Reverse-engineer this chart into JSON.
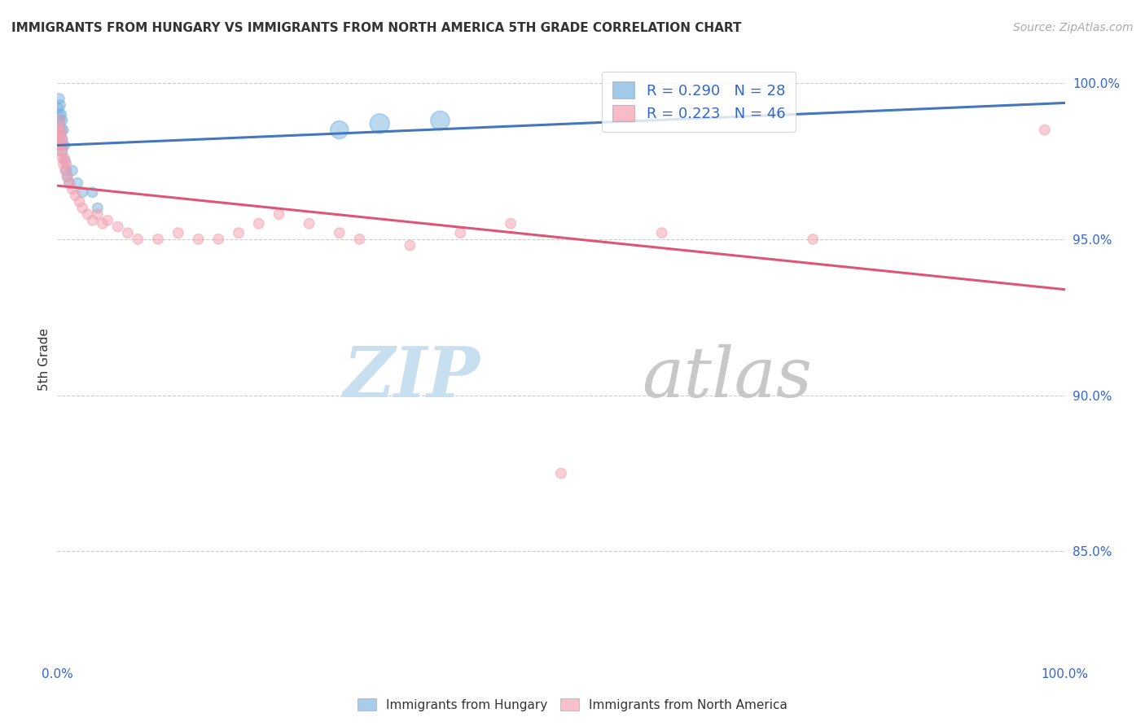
{
  "title": "IMMIGRANTS FROM HUNGARY VS IMMIGRANTS FROM NORTH AMERICA 5TH GRADE CORRELATION CHART",
  "source": "Source: ZipAtlas.com",
  "ylabel": "5th Grade",
  "ytick_values": [
    1.0,
    0.95,
    0.9,
    0.85
  ],
  "ytick_labels": [
    "100.0%",
    "95.0%",
    "90.0%",
    "85.0%"
  ],
  "blue_color": "#7ab3e0",
  "pink_color": "#f4a0b0",
  "blue_line_color": "#4477bb",
  "pink_line_color": "#dd5577",
  "legend_blue_label": "R = 0.290   N = 28",
  "legend_pink_label": "R = 0.223   N = 46",
  "blue_scatter_x": [
    0.001,
    0.001,
    0.002,
    0.002,
    0.002,
    0.003,
    0.003,
    0.003,
    0.004,
    0.004,
    0.004,
    0.005,
    0.005,
    0.005,
    0.006,
    0.007,
    0.008,
    0.009,
    0.01,
    0.012,
    0.015,
    0.02,
    0.025,
    0.035,
    0.04,
    0.28,
    0.32,
    0.38
  ],
  "blue_scatter_y": [
    0.992,
    0.988,
    0.995,
    0.99,
    0.986,
    0.993,
    0.988,
    0.983,
    0.99,
    0.985,
    0.98,
    0.988,
    0.982,
    0.978,
    0.985,
    0.98,
    0.975,
    0.972,
    0.97,
    0.968,
    0.972,
    0.968,
    0.965,
    0.965,
    0.96,
    0.985,
    0.987,
    0.988
  ],
  "blue_scatter_size": [
    80,
    80,
    80,
    80,
    80,
    80,
    80,
    80,
    80,
    80,
    80,
    80,
    80,
    80,
    80,
    80,
    80,
    80,
    80,
    80,
    80,
    80,
    80,
    80,
    80,
    250,
    300,
    280
  ],
  "pink_scatter_x": [
    0.001,
    0.001,
    0.002,
    0.002,
    0.003,
    0.003,
    0.004,
    0.004,
    0.005,
    0.005,
    0.006,
    0.006,
    0.007,
    0.008,
    0.009,
    0.01,
    0.012,
    0.015,
    0.018,
    0.022,
    0.025,
    0.03,
    0.035,
    0.04,
    0.045,
    0.05,
    0.06,
    0.07,
    0.08,
    0.1,
    0.12,
    0.14,
    0.16,
    0.18,
    0.2,
    0.22,
    0.25,
    0.28,
    0.3,
    0.35,
    0.4,
    0.45,
    0.5,
    0.6,
    0.75,
    0.98
  ],
  "pink_scatter_y": [
    0.986,
    0.982,
    0.988,
    0.983,
    0.985,
    0.98,
    0.984,
    0.978,
    0.982,
    0.976,
    0.98,
    0.974,
    0.976,
    0.972,
    0.974,
    0.97,
    0.968,
    0.966,
    0.964,
    0.962,
    0.96,
    0.958,
    0.956,
    0.958,
    0.955,
    0.956,
    0.954,
    0.952,
    0.95,
    0.95,
    0.952,
    0.95,
    0.95,
    0.952,
    0.955,
    0.958,
    0.955,
    0.952,
    0.95,
    0.948,
    0.952,
    0.955,
    0.875,
    0.952,
    0.95,
    0.985
  ],
  "pink_scatter_size": [
    80,
    80,
    80,
    80,
    80,
    80,
    80,
    80,
    80,
    80,
    80,
    80,
    80,
    80,
    80,
    80,
    80,
    80,
    80,
    80,
    80,
    80,
    80,
    80,
    80,
    80,
    80,
    80,
    80,
    80,
    80,
    80,
    80,
    80,
    80,
    80,
    80,
    80,
    80,
    80,
    80,
    80,
    80,
    80,
    80,
    80
  ],
  "xlim": [
    0.0,
    1.0
  ],
  "ylim": [
    0.815,
    1.008
  ],
  "grid_color": "#cccccc",
  "background_color": "#ffffff",
  "watermark_zip": "ZIP",
  "watermark_atlas": "atlas",
  "watermark_color_zip": "#c8dff0",
  "watermark_color_atlas": "#c8c8c8"
}
